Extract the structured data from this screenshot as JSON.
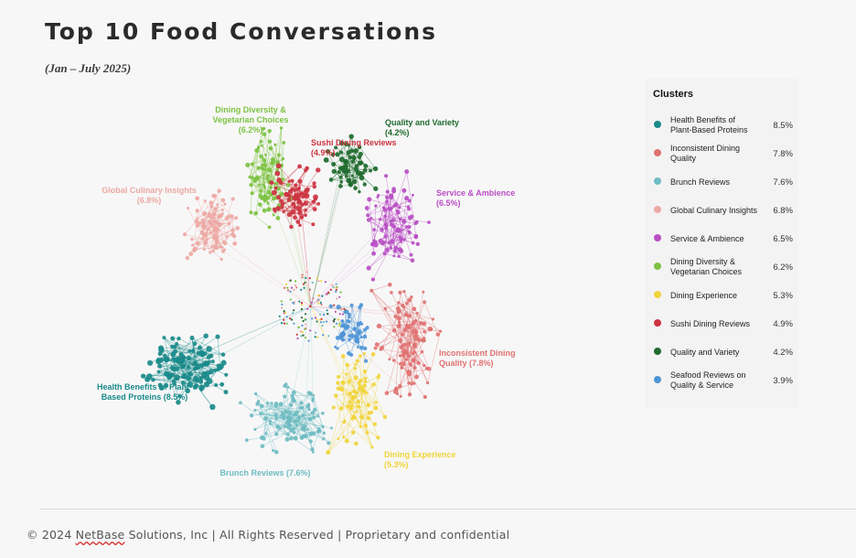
{
  "header": {
    "title": "Top 10 Food Conversations",
    "subtitle": "(Jan – July 2025)"
  },
  "legend": {
    "title": "Clusters"
  },
  "footer": {
    "prefix": "© 2024 ",
    "company": "NetBase",
    "rest": " Solutions, Inc | All Rights Reserved | Proprietary and confidential"
  },
  "chart_data": {
    "type": "network",
    "title": "Top 10 Food Conversations",
    "subtitle": "(Jan – July 2025)",
    "legend_position": "right",
    "clusters": [
      {
        "name": "Health Benefits of Plant-Based Proteins",
        "share": 8.5,
        "color": "#1a8a8a",
        "chart_label_lines": [
          "Health Benefits of Plant-",
          "Based Proteins  (8.5%)"
        ]
      },
      {
        "name": "Inconsistent Dining Quality",
        "share": 7.8,
        "color": "#e07272",
        "chart_label_lines": [
          "Inconsistent Dining",
          "Quality (7.8%)"
        ]
      },
      {
        "name": "Brunch Reviews",
        "share": 7.6,
        "color": "#6fbcc2",
        "chart_label_lines": [
          "Brunch Reviews  (7.6%)"
        ]
      },
      {
        "name": "Global Culinary Insights",
        "share": 6.8,
        "color": "#eda8a3",
        "chart_label_lines": [
          "Global Culinary Insights",
          "(6.8%)"
        ]
      },
      {
        "name": "Service & Ambience",
        "share": 6.5,
        "color": "#b94fc4",
        "chart_label_lines": [
          "Service & Ambience",
          "(6.5%)"
        ]
      },
      {
        "name": "Dining Diversity & Vegetarian Choices",
        "share": 6.2,
        "color": "#7dc243",
        "chart_label_lines": [
          "Dining Diversity &",
          "Vegetarian Choices",
          "(6.2%)"
        ]
      },
      {
        "name": "Dining Experience",
        "share": 5.3,
        "color": "#f1d43a",
        "chart_label_lines": [
          "Dining Experience",
          "(5.3%)"
        ]
      },
      {
        "name": "Sushi Dining Reviews",
        "share": 4.9,
        "color": "#cc3340",
        "chart_label_lines": [
          "Sushi Dining Reviews",
          "(4.9%)"
        ]
      },
      {
        "name": "Quality and Variety",
        "share": 4.2,
        "color": "#1f6b2e",
        "chart_label_lines": [
          "Quality and Variety",
          "(4.2%)"
        ]
      },
      {
        "name": "Seafood Reviews on Quality & Service",
        "share": 3.9,
        "color": "#4f95d6",
        "chart_label_lines": []
      }
    ]
  }
}
